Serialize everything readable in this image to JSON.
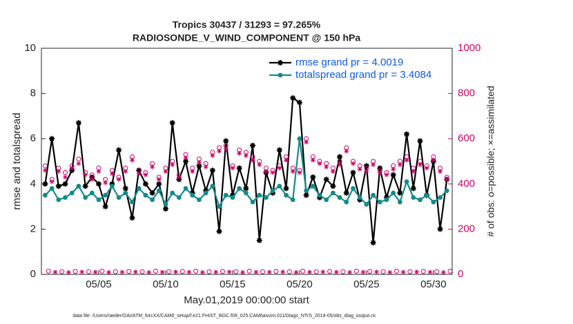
{
  "chart_data": {
    "type": "line",
    "title": "Tropics 30437 / 31293 = 97.265%",
    "subtitle": "RADIOSONDE_V_WIND_COMPONENT @ 150 hPa",
    "x_label": "May.01,2019 00:00:00 start",
    "y_label": "rmse and totalspread",
    "y2_label": "# of obs: o=possible; ×=assimilated",
    "footnote": "data file: /Users/raeder/DAI/ATM_forcXX/CAM6_setup/f.e21.FHIST_BGC.f09_025.CAM6assim.011/Diags_NTrS_2019-05/obs_diag_output.nc",
    "xlim": [
      0.72,
      31.4
    ],
    "xticks": [
      {
        "value": 5,
        "label": "05/05"
      },
      {
        "value": 10,
        "label": "05/10"
      },
      {
        "value": 15,
        "label": "05/15"
      },
      {
        "value": 20,
        "label": "05/20"
      },
      {
        "value": 25,
        "label": "05/25"
      },
      {
        "value": 30,
        "label": "05/30"
      }
    ],
    "ylim": [
      0,
      10
    ],
    "yticks": [
      0,
      2,
      4,
      6,
      8,
      10
    ],
    "y2lim": [
      0,
      1000
    ],
    "y2ticks": [
      0,
      200,
      400,
      600,
      800,
      1000
    ],
    "y2_color": "#cc0066",
    "legend": "top-right",
    "legend_color": "#0a5ce6",
    "x": [
      1,
      1.5,
      2,
      2.5,
      3,
      3.5,
      4,
      4.5,
      5,
      5.5,
      6,
      6.5,
      7,
      7.5,
      8,
      8.5,
      9,
      9.5,
      10,
      10.5,
      11,
      11.5,
      12,
      12.5,
      13,
      13.5,
      14,
      14.5,
      15,
      15.5,
      16,
      16.5,
      17,
      17.5,
      18,
      18.5,
      19,
      19.5,
      20,
      20.5,
      21,
      21.5,
      22,
      22.5,
      23,
      23.5,
      24,
      24.5,
      25,
      25.5,
      26,
      26.5,
      27,
      27.5,
      28,
      28.5,
      29,
      29.5,
      30,
      30.5,
      31
    ],
    "series": [
      {
        "name": "rmse grand pr = 4.0019",
        "color": "#000000",
        "marker": "asterisk",
        "values": [
          4.0,
          6.0,
          3.9,
          4.0,
          4.6,
          6.7,
          3.9,
          4.3,
          4.0,
          3.0,
          4.0,
          5.5,
          3.8,
          2.5,
          4.6,
          4.0,
          3.6,
          4.0,
          2.9,
          6.7,
          4.2,
          5.0,
          3.6,
          4.8,
          3.7,
          4.6,
          1.9,
          5.9,
          3.5,
          4.7,
          3.8,
          5.7,
          1.5,
          4.5,
          3.6,
          5.5,
          3.8,
          7.8,
          7.6,
          3.5,
          4.3,
          3.4,
          4.2,
          3.9,
          5.2,
          3.6,
          4.5,
          3.3,
          4.8,
          1.4,
          4.7,
          3.4,
          4.4,
          3.6,
          6.2,
          3.8,
          5.9,
          3.5,
          5.0,
          2.0,
          4.2
        ]
      },
      {
        "name": "totalspread grand pr = 3.4084",
        "color": "#138a8a",
        "marker": "dot",
        "values": [
          3.5,
          3.8,
          3.3,
          3.4,
          3.6,
          3.9,
          3.4,
          3.6,
          3.3,
          3.5,
          3.9,
          3.4,
          3.6,
          3.2,
          3.8,
          3.5,
          3.3,
          3.7,
          3.1,
          3.6,
          3.4,
          3.8,
          3.5,
          3.3,
          3.6,
          3.9,
          3.0,
          3.5,
          3.4,
          3.8,
          3.6,
          3.2,
          3.5,
          3.4,
          3.7,
          3.9,
          3.5,
          3.3,
          6.0,
          3.7,
          3.9,
          3.5,
          3.3,
          3.6,
          3.4,
          3.2,
          3.8,
          3.4,
          3.1,
          3.5,
          3.2,
          3.3,
          3.6,
          3.2,
          4.1,
          3.4,
          3.3,
          3.5,
          3.2,
          3.4,
          3.7
        ]
      },
      {
        "color": "#cc0066",
        "marker": "circle",
        "axis": "y2",
        "values": [
          480,
          420,
          470,
          450,
          480,
          510,
          450,
          440,
          470,
          420,
          460,
          430,
          470,
          520,
          460,
          450,
          490,
          430,
          470,
          500,
          440,
          530,
          470,
          510,
          490,
          540,
          560,
          570,
          480,
          550,
          540,
          520,
          500,
          470,
          460,
          480,
          520,
          470,
          460,
          600,
          520,
          500,
          490,
          470,
          500,
          560,
          500,
          480,
          470,
          500,
          460,
          450,
          480,
          500,
          520,
          470,
          500,
          480,
          520,
          470,
          430
        ]
      },
      {
        "color": "#cc0066",
        "marker": "asterisk",
        "axis": "y2",
        "values": [
          460,
          410,
          455,
          430,
          470,
          490,
          440,
          420,
          455,
          405,
          445,
          420,
          455,
          505,
          445,
          440,
          475,
          420,
          455,
          485,
          430,
          515,
          455,
          495,
          475,
          525,
          545,
          555,
          470,
          535,
          525,
          505,
          485,
          455,
          450,
          470,
          505,
          455,
          450,
          585,
          505,
          490,
          475,
          455,
          485,
          545,
          490,
          465,
          455,
          485,
          450,
          440,
          465,
          485,
          505,
          455,
          485,
          470,
          505,
          455,
          420
        ]
      },
      {
        "color": "#cc0066",
        "marker": "circle",
        "axis": "y2",
        "x": [
          1.25,
          2.25,
          3.25,
          4.25,
          5.25,
          6.25,
          7.25,
          8.25,
          9.25,
          10.25,
          11.25,
          12.25,
          13.25,
          14.25,
          15.25,
          16.25,
          17.25,
          18.25,
          19.25,
          20.25,
          21.25,
          22.25,
          23.25,
          24.25,
          25.25,
          26.25,
          27.25,
          28.25,
          29.25,
          30.25,
          31.25
        ],
        "values": [
          14,
          12,
          13,
          12,
          14,
          12,
          13,
          12,
          14,
          12,
          13,
          14,
          12,
          13,
          12,
          14,
          12,
          13,
          12,
          14,
          12,
          13,
          12,
          14,
          13,
          12,
          14,
          12,
          13,
          12,
          14
        ]
      },
      {
        "color": "#cc0066",
        "marker": "asterisk",
        "axis": "y2",
        "x": [
          1.75,
          2.75,
          3.75,
          4.75,
          5.75,
          6.75,
          7.75,
          8.75,
          9.75,
          10.75,
          11.75,
          12.75,
          13.75,
          14.75,
          15.75,
          16.75,
          17.75,
          18.75,
          19.75,
          20.75,
          21.75,
          22.75,
          23.75,
          24.75,
          25.75,
          26.75,
          27.75,
          28.75,
          29.75,
          30.75
        ],
        "values": [
          10,
          9,
          11,
          10,
          9,
          10,
          11,
          9,
          10,
          11,
          10,
          9,
          10,
          11,
          9,
          10,
          10,
          11,
          9,
          10,
          11,
          10,
          9,
          10,
          11,
          9,
          10,
          11,
          10,
          9
        ]
      }
    ]
  }
}
